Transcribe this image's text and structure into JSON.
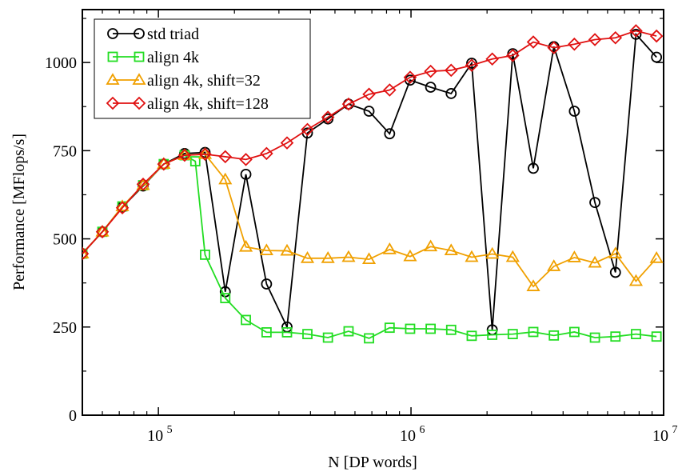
{
  "chart_data": {
    "type": "line",
    "xlabel": "N [DP words]",
    "ylabel": "Performance [MFlops/s]",
    "xscale": "log",
    "xlim": [
      50000,
      10000000
    ],
    "ylim": [
      0,
      1150
    ],
    "yticks": [
      0,
      250,
      500,
      750,
      1000
    ],
    "ytick_labels": [
      "0",
      "250",
      "500",
      "750",
      "1000"
    ],
    "xticks": [
      {
        "value": 100000,
        "base": "10",
        "exp": "5"
      },
      {
        "value": 1000000,
        "base": "10",
        "exp": "6"
      },
      {
        "value": 10000000,
        "base": "10",
        "exp": "7"
      }
    ],
    "grid": false,
    "legend_position": "top-left",
    "series": [
      {
        "name": "std triad",
        "color": "#000000",
        "marker": "circle",
        "points": [
          [
            50000,
            458
          ],
          [
            60000,
            520
          ],
          [
            72000,
            590
          ],
          [
            87000,
            650
          ],
          [
            105000,
            712
          ],
          [
            127000,
            742
          ],
          [
            153000,
            745
          ],
          [
            184000,
            350
          ],
          [
            222000,
            683
          ],
          [
            268000,
            372
          ],
          [
            323000,
            250
          ],
          [
            389000,
            800
          ],
          [
            469000,
            840
          ],
          [
            566000,
            882
          ],
          [
            682000,
            862
          ],
          [
            823000,
            798
          ],
          [
            992000,
            950
          ],
          [
            1196000,
            930
          ],
          [
            1442000,
            912
          ],
          [
            1739000,
            998
          ],
          [
            2097000,
            242
          ],
          [
            2528000,
            1025
          ],
          [
            3049000,
            700
          ],
          [
            3677000,
            1045
          ],
          [
            4433000,
            862
          ],
          [
            5346000,
            603
          ],
          [
            6447000,
            405
          ],
          [
            7774000,
            1080
          ],
          [
            9375000,
            1015
          ]
        ]
      },
      {
        "name": "align 4k",
        "color": "#22dd22",
        "marker": "square",
        "points": [
          [
            50000,
            458
          ],
          [
            60000,
            520
          ],
          [
            72000,
            592
          ],
          [
            87000,
            652
          ],
          [
            105000,
            712
          ],
          [
            127000,
            737
          ],
          [
            140000,
            720
          ],
          [
            153000,
            455
          ],
          [
            184000,
            332
          ],
          [
            222000,
            270
          ],
          [
            268000,
            235
          ],
          [
            323000,
            235
          ],
          [
            389000,
            230
          ],
          [
            469000,
            220
          ],
          [
            566000,
            238
          ],
          [
            682000,
            218
          ],
          [
            823000,
            248
          ],
          [
            992000,
            245
          ],
          [
            1196000,
            245
          ],
          [
            1442000,
            242
          ],
          [
            1739000,
            225
          ],
          [
            2097000,
            228
          ],
          [
            2528000,
            230
          ],
          [
            3049000,
            236
          ],
          [
            3677000,
            226
          ],
          [
            4433000,
            236
          ],
          [
            5346000,
            220
          ],
          [
            6447000,
            223
          ],
          [
            7774000,
            230
          ],
          [
            9375000,
            223
          ]
        ]
      },
      {
        "name": "align 4k, shift=32",
        "color": "#f0a000",
        "marker": "triangle",
        "points": [
          [
            50000,
            458
          ],
          [
            60000,
            520
          ],
          [
            72000,
            592
          ],
          [
            87000,
            652
          ],
          [
            105000,
            712
          ],
          [
            127000,
            737
          ],
          [
            153000,
            740
          ],
          [
            184000,
            668
          ],
          [
            222000,
            477
          ],
          [
            268000,
            467
          ],
          [
            323000,
            466
          ],
          [
            389000,
            445
          ],
          [
            469000,
            445
          ],
          [
            566000,
            448
          ],
          [
            682000,
            442
          ],
          [
            823000,
            470
          ],
          [
            992000,
            450
          ],
          [
            1196000,
            478
          ],
          [
            1442000,
            467
          ],
          [
            1739000,
            448
          ],
          [
            2097000,
            457
          ],
          [
            2528000,
            448
          ],
          [
            3049000,
            365
          ],
          [
            3677000,
            422
          ],
          [
            4433000,
            447
          ],
          [
            5346000,
            432
          ],
          [
            6447000,
            458
          ],
          [
            7774000,
            380
          ],
          [
            9375000,
            445
          ]
        ]
      },
      {
        "name": "align 4k, shift=128",
        "color": "#e01010",
        "marker": "diamond",
        "points": [
          [
            50000,
            458
          ],
          [
            60000,
            520
          ],
          [
            72000,
            588
          ],
          [
            87000,
            655
          ],
          [
            105000,
            712
          ],
          [
            127000,
            737
          ],
          [
            153000,
            740
          ],
          [
            184000,
            733
          ],
          [
            222000,
            725
          ],
          [
            268000,
            742
          ],
          [
            323000,
            772
          ],
          [
            389000,
            810
          ],
          [
            469000,
            845
          ],
          [
            566000,
            882
          ],
          [
            682000,
            910
          ],
          [
            823000,
            922
          ],
          [
            992000,
            958
          ],
          [
            1196000,
            975
          ],
          [
            1442000,
            978
          ],
          [
            1739000,
            992
          ],
          [
            2097000,
            1010
          ],
          [
            2528000,
            1020
          ],
          [
            3049000,
            1058
          ],
          [
            3677000,
            1042
          ],
          [
            4433000,
            1052
          ],
          [
            5346000,
            1065
          ],
          [
            6447000,
            1070
          ],
          [
            7774000,
            1090
          ],
          [
            9375000,
            1075
          ]
        ]
      }
    ]
  }
}
